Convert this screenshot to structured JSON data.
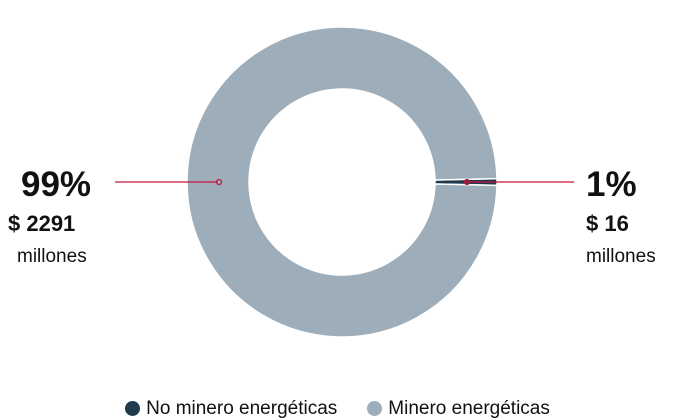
{
  "chart_data": {
    "type": "pie",
    "donut": true,
    "slices": [
      {
        "name": "No minero energéticas",
        "value": 16,
        "percent": 1,
        "percent_label": "1%",
        "amount_label": "$ 16",
        "unit_label": "millones",
        "color": "#1f3a4d"
      },
      {
        "name": "Minero energéticas",
        "value": 2291,
        "percent": 99,
        "percent_label": "99%",
        "amount_label": "$ 2291",
        "unit_label": "millones",
        "color": "#9dadb9"
      }
    ],
    "leader_color": "#c8143c",
    "legend_position": "bottom"
  },
  "legend": [
    {
      "label": "No minero energéticas",
      "color": "#1f3a4d"
    },
    {
      "label": "Minero energéticas",
      "color": "#9dadb9"
    }
  ]
}
